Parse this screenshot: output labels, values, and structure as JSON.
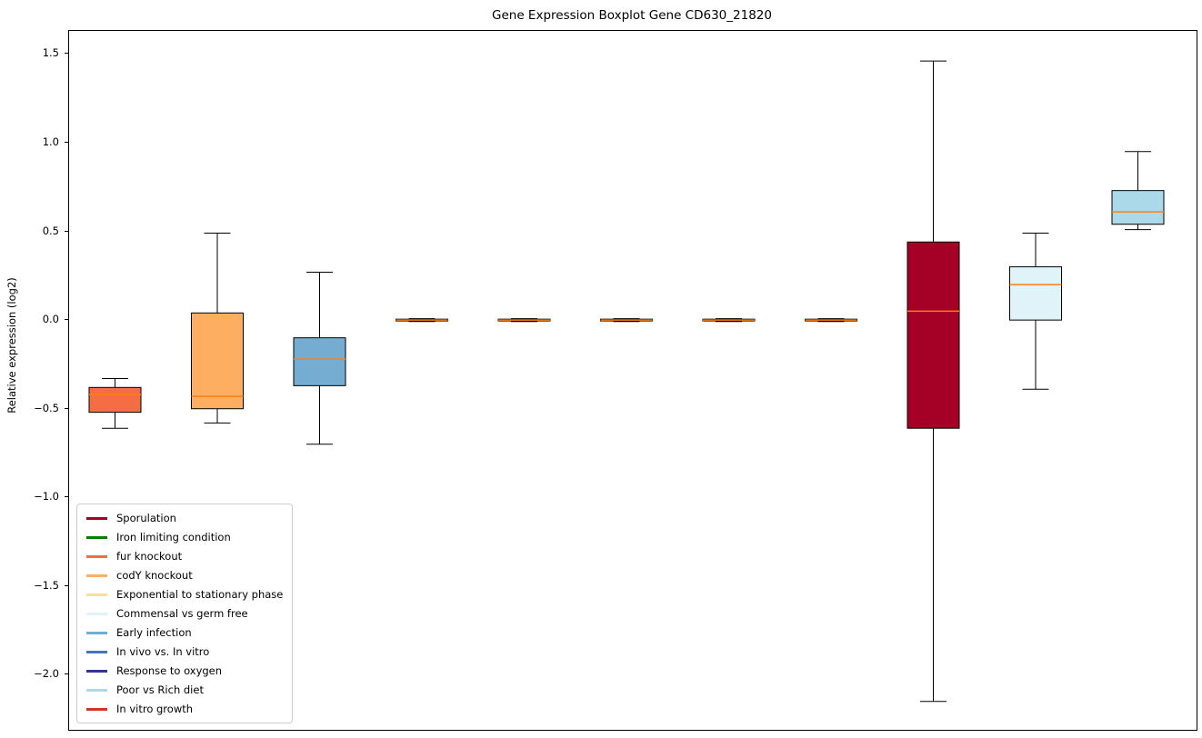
{
  "chart_data": {
    "type": "boxplot",
    "title": "Gene Expression Boxplot Gene CD630_21820",
    "xlabel": "",
    "ylabel": "Relative expression (log2)",
    "ylim": [
      -2.31,
      1.63
    ],
    "yticks": [
      1.5,
      1.0,
      0.5,
      0.0,
      -0.5,
      -1.0,
      -1.5,
      -2.0
    ],
    "grid": false,
    "median_color": "#ff7f0e",
    "whisker_color": "#000000",
    "box_edge_color": "#000000",
    "boxes": [
      {
        "label": "fur knockout",
        "color": "#f46d43",
        "whisker_low": -0.61,
        "q1": -0.52,
        "median": -0.42,
        "q3": -0.38,
        "whisker_high": -0.33
      },
      {
        "label": "codY knockout",
        "color": "#fdae61",
        "whisker_low": -0.58,
        "q1": -0.5,
        "median": -0.43,
        "q3": 0.04,
        "whisker_high": 0.49
      },
      {
        "label": "Early infection",
        "color": "#74add1",
        "whisker_low": -0.7,
        "q1": -0.37,
        "median": -0.22,
        "q3": -0.1,
        "whisker_high": 0.27
      },
      {
        "label": "Iron limiting condition",
        "color": "#008000",
        "whisker_low": -0.008,
        "q1": -0.005,
        "median": 0.0,
        "q3": 0.005,
        "whisker_high": 0.008
      },
      {
        "label": "Exponential to stationary phase",
        "color": "#fee090",
        "whisker_low": -0.008,
        "q1": -0.005,
        "median": 0.0,
        "q3": 0.005,
        "whisker_high": 0.008
      },
      {
        "label": "In vivo vs. In vitro",
        "color": "#4575b4",
        "whisker_low": -0.008,
        "q1": -0.005,
        "median": 0.0,
        "q3": 0.005,
        "whisker_high": 0.008
      },
      {
        "label": "Response to oxygen",
        "color": "#313695",
        "whisker_low": -0.008,
        "q1": -0.005,
        "median": 0.0,
        "q3": 0.005,
        "whisker_high": 0.008
      },
      {
        "label": "In vitro growth",
        "color": "#d73027",
        "whisker_low": -0.008,
        "q1": -0.005,
        "median": 0.0,
        "q3": 0.005,
        "whisker_high": 0.008
      },
      {
        "label": "Sporulation",
        "color": "#a50026",
        "whisker_low": -2.15,
        "q1": -0.61,
        "median": 0.05,
        "q3": 0.44,
        "whisker_high": 1.46
      },
      {
        "label": "Commensal vs germ free",
        "color": "#e0f3f8",
        "whisker_low": -0.39,
        "q1": 0.0,
        "median": 0.2,
        "q3": 0.3,
        "whisker_high": 0.49
      },
      {
        "label": "Poor vs Rich diet",
        "color": "#abd9e9",
        "whisker_low": 0.51,
        "q1": 0.54,
        "median": 0.61,
        "q3": 0.73,
        "whisker_high": 0.95
      }
    ],
    "legend": {
      "position": "lower left",
      "items": [
        {
          "label": "Sporulation",
          "color": "#a50026"
        },
        {
          "label": "Iron limiting condition",
          "color": "#008000"
        },
        {
          "label": "fur knockout",
          "color": "#f46d43"
        },
        {
          "label": "codY knockout",
          "color": "#fdae61"
        },
        {
          "label": "Exponential to stationary phase",
          "color": "#fee090"
        },
        {
          "label": "Commensal vs germ free",
          "color": "#e0f3f8"
        },
        {
          "label": "Early infection",
          "color": "#74add1"
        },
        {
          "label": "In vivo vs. In vitro",
          "color": "#4575b4"
        },
        {
          "label": "Response to oxygen",
          "color": "#313695"
        },
        {
          "label": "Poor vs Rich diet",
          "color": "#abd9e9"
        },
        {
          "label": "In vitro growth",
          "color": "#d73027"
        }
      ]
    }
  }
}
